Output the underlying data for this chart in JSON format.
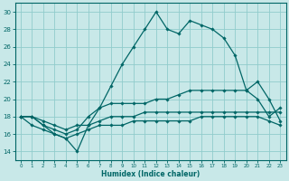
{
  "xlabel": "Humidex (Indice chaleur)",
  "bg_color": "#c8e8e8",
  "line_color": "#006666",
  "grid_color": "#90cccc",
  "xlim": [
    -0.5,
    23.5
  ],
  "ylim": [
    13,
    31
  ],
  "xticks": [
    0,
    1,
    2,
    3,
    4,
    5,
    6,
    7,
    8,
    9,
    10,
    11,
    12,
    13,
    14,
    15,
    16,
    17,
    18,
    19,
    20,
    21,
    22,
    23
  ],
  "yticks": [
    14,
    16,
    18,
    20,
    22,
    24,
    26,
    28,
    30
  ],
  "lines": [
    {
      "x": [
        0,
        1,
        2,
        3,
        4,
        5,
        6,
        7,
        8,
        9,
        10,
        11,
        12,
        13,
        14,
        15,
        16,
        17,
        18,
        19,
        20,
        21,
        22,
        23
      ],
      "y": [
        18,
        18,
        17,
        16,
        15.5,
        14,
        17,
        19,
        21.5,
        24,
        26,
        28,
        30,
        28,
        27.5,
        29,
        28.5,
        28,
        27,
        25,
        21,
        22,
        20,
        17.5
      ]
    },
    {
      "x": [
        0,
        1,
        2,
        3,
        4,
        5,
        6,
        7,
        8,
        9,
        10,
        11,
        12,
        13,
        14,
        15,
        16,
        17,
        18,
        19,
        20,
        21,
        22,
        23
      ],
      "y": [
        18,
        18,
        17,
        16.5,
        16,
        16.5,
        18,
        19,
        19.5,
        19.5,
        19.5,
        19.5,
        20,
        20,
        20.5,
        21,
        21,
        21,
        21,
        21,
        21,
        20,
        18,
        19
      ]
    },
    {
      "x": [
        0,
        1,
        2,
        3,
        4,
        5,
        6,
        7,
        8,
        9,
        10,
        11,
        12,
        13,
        14,
        15,
        16,
        17,
        18,
        19,
        20,
        21,
        22,
        23
      ],
      "y": [
        18,
        18,
        17.5,
        17,
        16.5,
        17,
        17,
        17.5,
        18,
        18,
        18,
        18.5,
        18.5,
        18.5,
        18.5,
        18.5,
        18.5,
        18.5,
        18.5,
        18.5,
        18.5,
        18.5,
        18.5,
        18.5
      ]
    },
    {
      "x": [
        0,
        1,
        2,
        3,
        4,
        5,
        6,
        7,
        8,
        9,
        10,
        11,
        12,
        13,
        14,
        15,
        16,
        17,
        18,
        19,
        20,
        21,
        22,
        23
      ],
      "y": [
        18,
        17,
        16.5,
        16,
        15.5,
        16,
        16.5,
        17,
        17,
        17,
        17.5,
        17.5,
        17.5,
        17.5,
        17.5,
        17.5,
        18,
        18,
        18,
        18,
        18,
        18,
        17.5,
        17
      ]
    }
  ]
}
